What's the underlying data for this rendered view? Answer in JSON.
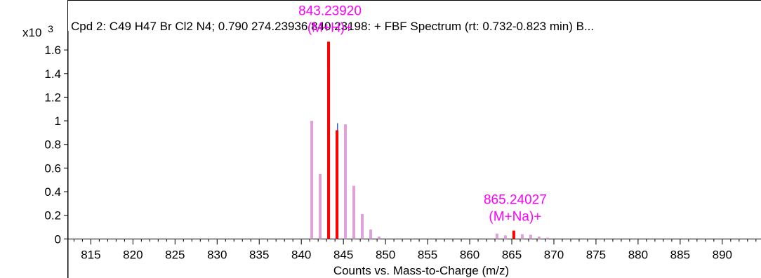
{
  "chart_data": {
    "type": "bar",
    "title": "Cpd 2: C49 H47 Br Cl2 N4; 0.790 274.23936 840.23198: + FBF Spectrum (rt: 0.732-0.823 min) B...",
    "xlabel": "Counts vs. Mass-to-Charge (m/z)",
    "ylabel": "",
    "y_multiplier_label": "x10",
    "y_multiplier_exponent": "3",
    "xlim": [
      812.3,
      894.6
    ],
    "ylim": [
      -0.01,
      1.69
    ],
    "x_ticks": [
      815,
      820,
      825,
      830,
      835,
      840,
      845,
      850,
      855,
      860,
      865,
      870,
      875,
      880,
      885,
      890
    ],
    "y_ticks": [
      0,
      0.2,
      0.4,
      0.6,
      0.8,
      1,
      1.2,
      1.4,
      1.6
    ],
    "y_tick_labels": [
      "0",
      "0.2",
      "0.4",
      "0.6",
      "0.8",
      "1",
      "1.2",
      "1.4",
      "1.6"
    ],
    "grid": false,
    "colors": {
      "predicted": "#e0a0d8",
      "measured": "#ff0000",
      "overlay": "#3060d0",
      "annotation": "#ff00ff"
    },
    "series": [
      {
        "color": "#e0a0d8",
        "points": [
          {
            "x": 841.24,
            "y": 1.0
          },
          {
            "x": 842.24,
            "y": 0.55
          },
          {
            "x": 843.24,
            "y": 1.42
          },
          {
            "x": 844.24,
            "y": 0.82
          },
          {
            "x": 845.24,
            "y": 0.97
          },
          {
            "x": 846.24,
            "y": 0.45
          },
          {
            "x": 847.24,
            "y": 0.21
          },
          {
            "x": 848.24,
            "y": 0.08
          },
          {
            "x": 849.24,
            "y": 0.02
          },
          {
            "x": 863.24,
            "y": 0.045
          },
          {
            "x": 864.24,
            "y": 0.03
          },
          {
            "x": 866.24,
            "y": 0.04
          },
          {
            "x": 867.24,
            "y": 0.035
          },
          {
            "x": 868.24,
            "y": 0.02
          },
          {
            "x": 869.24,
            "y": 0.01
          }
        ]
      },
      {
        "color": "#3060d0",
        "points": [
          {
            "x": 843.3,
            "y": 1.05
          },
          {
            "x": 844.3,
            "y": 0.98
          }
        ]
      },
      {
        "color": "#ff0000",
        "points": [
          {
            "x": 843.2392,
            "y": 1.67
          },
          {
            "x": 844.24,
            "y": 0.92
          },
          {
            "x": 865.24027,
            "y": 0.07
          }
        ]
      }
    ],
    "annotations": [
      {
        "x": 843.2392,
        "y": 1.67,
        "mz": "843.23920",
        "ion": "(M+H)+"
      },
      {
        "x": 865.24027,
        "y": 0.07,
        "mz": "865.24027",
        "ion": "(M+Na)+"
      }
    ]
  }
}
